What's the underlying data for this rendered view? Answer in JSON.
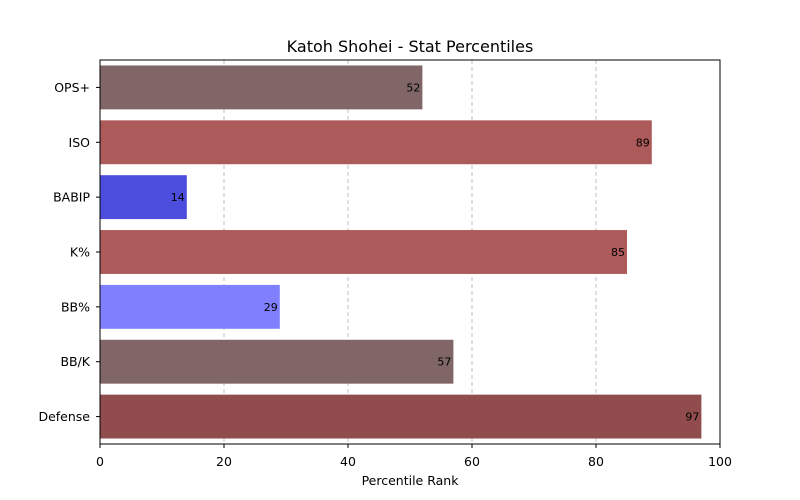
{
  "chart_data": {
    "type": "bar",
    "orientation": "horizontal",
    "title": "Katoh Shohei - Stat Percentiles",
    "xlabel": "Percentile Rank",
    "ylabel": "",
    "xlim": [
      0,
      100
    ],
    "xticks": [
      0,
      20,
      40,
      60,
      80,
      100
    ],
    "grid": "x-dashed",
    "categories": [
      "OPS+",
      "ISO",
      "BABIP",
      "K%",
      "BB%",
      "BB/K",
      "Defense"
    ],
    "values": [
      52,
      89,
      14,
      85,
      29,
      57,
      97
    ],
    "colors": [
      "#806666",
      "#ad5a5a",
      "#4d4ddd",
      "#ad5a5a",
      "#8080ff",
      "#806666",
      "#914d4d"
    ]
  }
}
